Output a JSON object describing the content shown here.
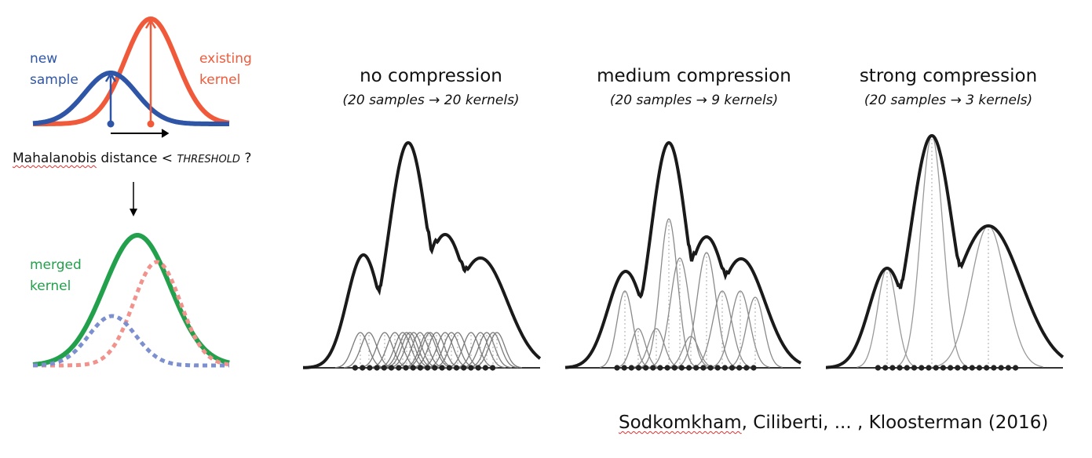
{
  "left_panel": {
    "new_sample_label": [
      "new",
      "sample"
    ],
    "existing_kernel_label": [
      "existing",
      "kernel"
    ],
    "question": {
      "word1": "Mahalanobis",
      "rest": " distance < ",
      "threshold": "THRESHOLD",
      "end": " ?"
    },
    "merged_kernel_label": [
      "merged",
      "kernel"
    ],
    "colors": {
      "new_sample": "#2f56a6",
      "existing_kernel": "#f05a3a",
      "merged_kernel": "#22a04b"
    }
  },
  "panels": [
    {
      "title": "no compression",
      "subtitle": "(20 samples → 20 kernels)",
      "kernel_count": 20
    },
    {
      "title": "medium compression",
      "subtitle": "(20 samples → 9 kernels)",
      "kernel_count": 9
    },
    {
      "title": "strong compression",
      "subtitle": "(20 samples → 3 kernels)",
      "kernel_count": 3
    }
  ],
  "citation": {
    "first_author": "Sodkomkham",
    "rest": ", Ciliberti, ... , Kloosterman (2016)"
  }
}
